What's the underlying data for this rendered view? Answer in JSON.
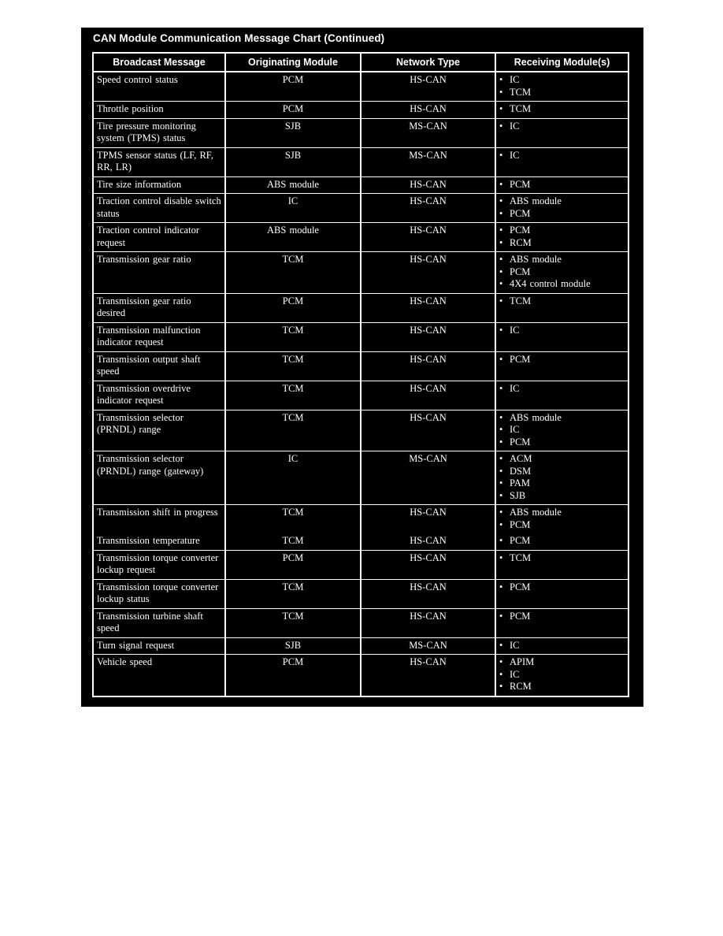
{
  "title": "CAN Module Communication Message Chart (Continued)",
  "colors": {
    "panel_background": "#000000",
    "text": "#ffffff",
    "table_border": "#ffffff",
    "page_background": "#ffffff"
  },
  "bullet_glyph": "•",
  "table": {
    "headers": [
      "Broadcast Message",
      "Originating Module",
      "Network Type",
      "Receiving Module(s)"
    ],
    "rows": [
      {
        "message": "Speed control status",
        "origin": "PCM",
        "network": "HS-CAN",
        "receivers": [
          "IC",
          "TCM"
        ]
      },
      {
        "message": "Throttle position",
        "origin": "PCM",
        "network": "HS-CAN",
        "receivers": [
          "TCM"
        ]
      },
      {
        "message": "Tire pressure monitoring system (TPMS) status",
        "origin": "SJB",
        "network": "MS-CAN",
        "receivers": [
          "IC"
        ]
      },
      {
        "message": "TPMS sensor status (LF, RF, RR, LR)",
        "origin": "SJB",
        "network": "MS-CAN",
        "receivers": [
          "IC"
        ]
      },
      {
        "message": "Tire size information",
        "origin": "ABS module",
        "network": "HS-CAN",
        "receivers": [
          "PCM"
        ]
      },
      {
        "message": "Traction control disable switch status",
        "origin": "IC",
        "network": "HS-CAN",
        "receivers": [
          "ABS module",
          "PCM"
        ]
      },
      {
        "message": "Traction control indicator request",
        "origin": "ABS module",
        "network": "HS-CAN",
        "receivers": [
          "PCM",
          "RCM"
        ]
      },
      {
        "message": "Transmission gear ratio",
        "origin": "TCM",
        "network": "HS-CAN",
        "receivers": [
          "ABS module",
          "PCM",
          "4X4 control module"
        ]
      },
      {
        "message": "Transmission gear ratio desired",
        "origin": "PCM",
        "network": "HS-CAN",
        "receivers": [
          "TCM"
        ]
      },
      {
        "message": "Transmission malfunction indicator request",
        "origin": "TCM",
        "network": "HS-CAN",
        "receivers": [
          "IC"
        ]
      },
      {
        "message": "Transmission output shaft speed",
        "origin": "TCM",
        "network": "HS-CAN",
        "receivers": [
          "PCM"
        ]
      },
      {
        "message": "Transmission overdrive indicator request",
        "origin": "TCM",
        "network": "HS-CAN",
        "receivers": [
          "IC"
        ]
      },
      {
        "message": "Transmission selector (PRNDL) range",
        "origin": "TCM",
        "network": "HS-CAN",
        "receivers": [
          "ABS module",
          "IC",
          "PCM"
        ]
      },
      {
        "message": "Transmission selector (PRNDL) range (gateway)",
        "origin": "IC",
        "network": "MS-CAN",
        "receivers": [
          "ACM",
          "DSM",
          "PAM",
          "SJB"
        ]
      },
      {
        "message": "Transmission shift in progress",
        "origin": "TCM",
        "network": "HS-CAN",
        "receivers": [
          "ABS module",
          "PCM"
        ]
      },
      {
        "message": "Transmission temperature",
        "origin": "TCM",
        "network": "HS-CAN",
        "receivers": [
          "PCM"
        ],
        "no_top_border": true
      },
      {
        "message": "Transmission torque converter lockup request",
        "origin": "PCM",
        "network": "HS-CAN",
        "receivers": [
          "TCM"
        ]
      },
      {
        "message": "Transmission torque converter lockup status",
        "origin": "TCM",
        "network": "HS-CAN",
        "receivers": [
          "PCM"
        ]
      },
      {
        "message": "Transmission turbine shaft speed",
        "origin": "TCM",
        "network": "HS-CAN",
        "receivers": [
          "PCM"
        ]
      },
      {
        "message": "Turn signal request",
        "origin": "SJB",
        "network": "MS-CAN",
        "receivers": [
          "IC"
        ]
      },
      {
        "message": "Vehicle speed",
        "origin": "PCM",
        "network": "HS-CAN",
        "receivers": [
          "APIM",
          "IC",
          "RCM"
        ]
      }
    ]
  }
}
